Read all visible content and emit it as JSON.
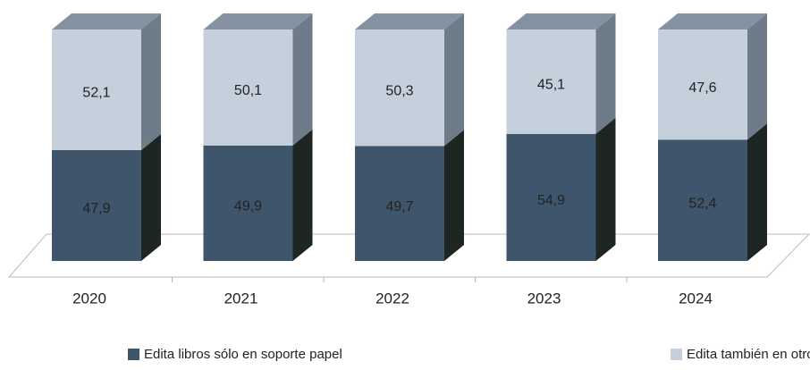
{
  "chart_data": {
    "type": "bar3d_stacked",
    "categories": [
      "2020",
      "2021",
      "2022",
      "2023",
      "2024"
    ],
    "ylim": [
      0,
      100
    ],
    "series": [
      {
        "name": "Edita libros sólo en soporte papel",
        "color": "#3f556b",
        "side_color": "#1e2624",
        "values": [
          47.9,
          49.9,
          49.7,
          54.9,
          52.4
        ],
        "value_labels": [
          "47,9",
          "49,9",
          "49,7",
          "54,9",
          "52,4"
        ]
      },
      {
        "name": "Edita también en otros soportes",
        "color": "#c6d0dc",
        "side_color": "#6e7c8a",
        "values": [
          52.1,
          50.1,
          50.3,
          45.1,
          47.6
        ],
        "value_labels": [
          "52,1",
          "50,1",
          "50,3",
          "45,1",
          "47,6"
        ]
      }
    ]
  }
}
